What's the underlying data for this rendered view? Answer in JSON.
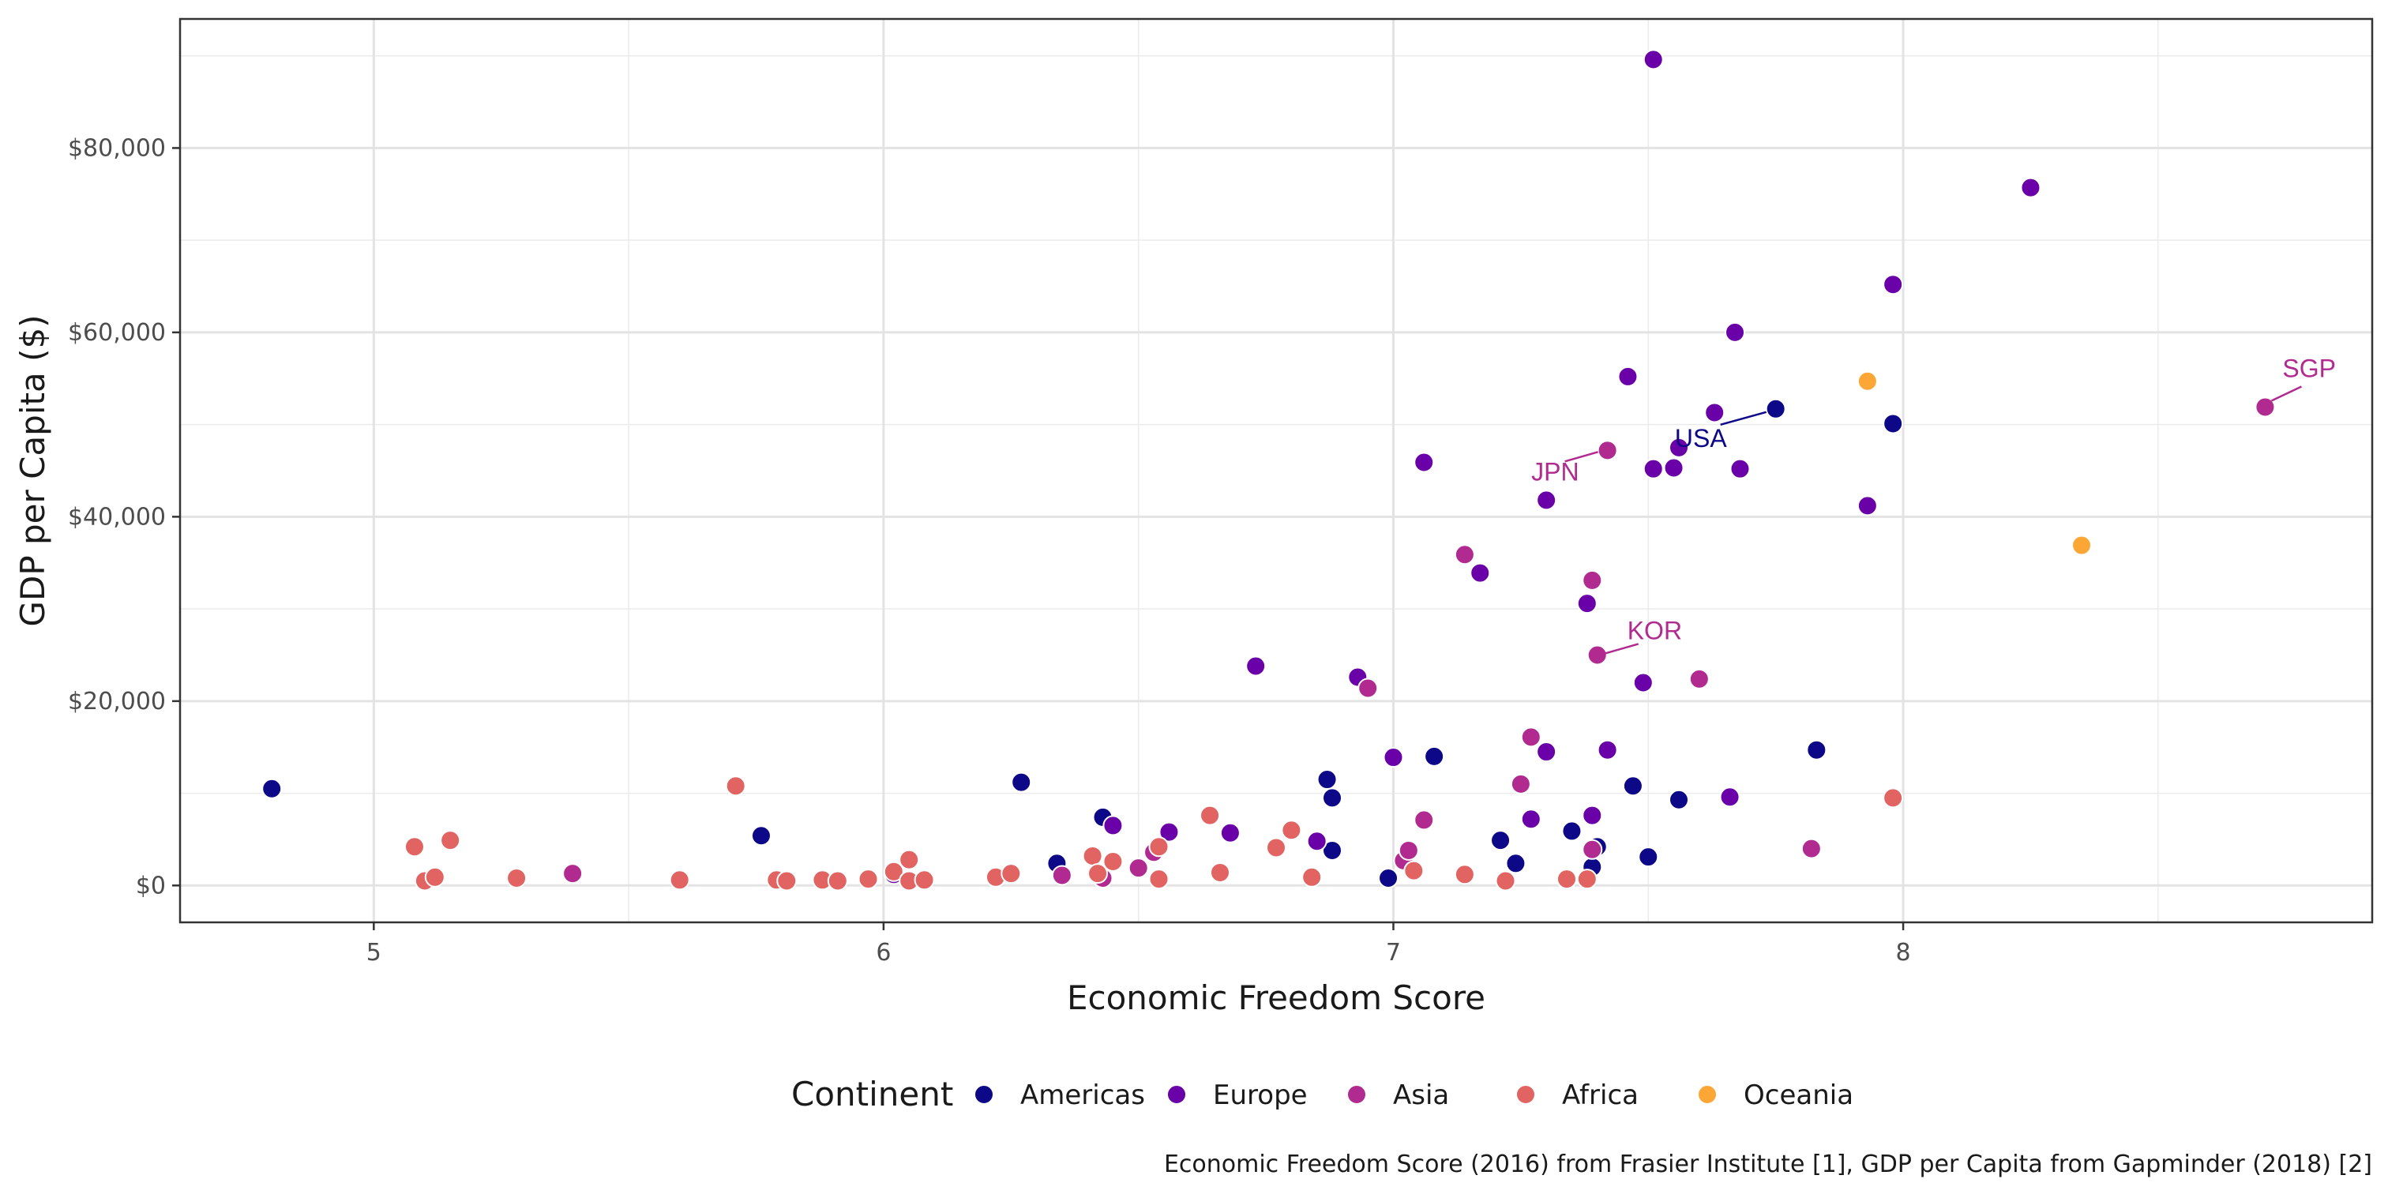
{
  "chart_data": {
    "type": "scatter",
    "title": "",
    "xlabel": "Economic Freedom Score",
    "ylabel": "GDP per Capita ($)",
    "xlim": [
      4.62,
      8.92
    ],
    "ylim": [
      -4000,
      94000
    ],
    "x_ticks": [
      5,
      6,
      7,
      8
    ],
    "x_tick_labels": [
      "5",
      "6",
      "7",
      "8"
    ],
    "y_ticks": [
      0,
      20000,
      40000,
      60000,
      80000
    ],
    "y_tick_labels": [
      "$0",
      "$20,000",
      "$40,000",
      "$60,000",
      "$80,000"
    ],
    "grid": true,
    "legend": {
      "title": "Continent",
      "placement": "bottom"
    },
    "caption": "Economic Freedom Score (2016) from Frasier Institute [1], GDP per Capita from Gapminder (2018) [2]",
    "series": [
      {
        "name": "Americas",
        "color": "#0d0887",
        "points": [
          [
            4.8,
            10500
          ],
          [
            5.76,
            5400
          ],
          [
            6.27,
            11200
          ],
          [
            6.34,
            2400
          ],
          [
            6.43,
            7400
          ],
          [
            6.87,
            11500
          ],
          [
            6.88,
            9500
          ],
          [
            6.88,
            3800
          ],
          [
            6.99,
            800
          ],
          [
            7.08,
            14000
          ],
          [
            7.21,
            4900
          ],
          [
            7.24,
            2400
          ],
          [
            7.35,
            5900
          ],
          [
            7.39,
            2000
          ],
          [
            7.4,
            4200
          ],
          [
            7.47,
            10800
          ],
          [
            7.5,
            3100
          ],
          [
            7.56,
            9300
          ],
          [
            7.75,
            51700
          ],
          [
            7.83,
            14700
          ],
          [
            7.98,
            50100
          ]
        ]
      },
      {
        "name": "Europe",
        "color": "#6a00a8",
        "points": [
          [
            6.02,
            1200
          ],
          [
            6.45,
            6500
          ],
          [
            6.56,
            5800
          ],
          [
            6.68,
            5700
          ],
          [
            6.73,
            23800
          ],
          [
            6.85,
            4800
          ],
          [
            6.93,
            22600
          ],
          [
            7.0,
            13900
          ],
          [
            7.06,
            45900
          ],
          [
            7.17,
            33900
          ],
          [
            7.27,
            7200
          ],
          [
            7.3,
            41800
          ],
          [
            7.3,
            14500
          ],
          [
            7.38,
            30600
          ],
          [
            7.39,
            7600
          ],
          [
            7.42,
            14700
          ],
          [
            7.46,
            55200
          ],
          [
            7.49,
            22000
          ],
          [
            7.51,
            45200
          ],
          [
            7.51,
            89600
          ],
          [
            7.55,
            45300
          ],
          [
            7.56,
            47500
          ],
          [
            7.63,
            51300
          ],
          [
            7.66,
            9600
          ],
          [
            7.67,
            60000
          ],
          [
            7.68,
            45200
          ],
          [
            7.93,
            41200
          ],
          [
            7.98,
            65200
          ],
          [
            8.25,
            75700
          ]
        ]
      },
      {
        "name": "Asia",
        "color": "#b12a90",
        "points": [
          [
            5.39,
            1300
          ],
          [
            6.35,
            1100
          ],
          [
            6.43,
            800
          ],
          [
            6.5,
            1900
          ],
          [
            6.53,
            3600
          ],
          [
            6.95,
            21400
          ],
          [
            7.02,
            2700
          ],
          [
            7.03,
            3800
          ],
          [
            7.06,
            7100
          ],
          [
            7.14,
            35900
          ],
          [
            7.25,
            11000
          ],
          [
            7.27,
            16100
          ],
          [
            7.39,
            3900
          ],
          [
            7.39,
            33100
          ],
          [
            7.4,
            25000
          ],
          [
            7.42,
            47200
          ],
          [
            7.6,
            22400
          ],
          [
            7.82,
            4000
          ],
          [
            8.71,
            51900
          ]
        ]
      },
      {
        "name": "Africa",
        "color": "#e16462",
        "points": [
          [
            5.08,
            4200
          ],
          [
            5.1,
            500
          ],
          [
            5.12,
            900
          ],
          [
            5.15,
            4900
          ],
          [
            5.28,
            800
          ],
          [
            5.6,
            600
          ],
          [
            5.71,
            10800
          ],
          [
            5.79,
            600
          ],
          [
            5.81,
            500
          ],
          [
            5.88,
            600
          ],
          [
            5.91,
            500
          ],
          [
            5.97,
            700
          ],
          [
            6.02,
            1500
          ],
          [
            6.05,
            500
          ],
          [
            6.05,
            2800
          ],
          [
            6.08,
            600
          ],
          [
            6.22,
            900
          ],
          [
            6.25,
            1300
          ],
          [
            6.41,
            3200
          ],
          [
            6.42,
            1300
          ],
          [
            6.45,
            2600
          ],
          [
            6.54,
            700
          ],
          [
            6.54,
            4200
          ],
          [
            6.64,
            7600
          ],
          [
            6.66,
            1400
          ],
          [
            6.77,
            4100
          ],
          [
            6.8,
            6000
          ],
          [
            6.84,
            900
          ],
          [
            7.04,
            1600
          ],
          [
            7.14,
            1200
          ],
          [
            7.22,
            500
          ],
          [
            7.34,
            700
          ],
          [
            7.38,
            700
          ],
          [
            7.98,
            9500
          ]
        ]
      },
      {
        "name": "Oceania",
        "color": "#fca636",
        "points": [
          [
            7.93,
            54700
          ],
          [
            8.35,
            36900
          ]
        ]
      }
    ],
    "annotations": [
      {
        "label": "SGP",
        "x": 8.71,
        "y": 51900,
        "series": "Asia"
      },
      {
        "label": "USA",
        "x": 7.75,
        "y": 51700,
        "series": "Americas"
      },
      {
        "label": "JPN",
        "x": 7.42,
        "y": 47200,
        "series": "Asia"
      },
      {
        "label": "KOR",
        "x": 7.4,
        "y": 25000,
        "series": "Asia"
      }
    ]
  }
}
